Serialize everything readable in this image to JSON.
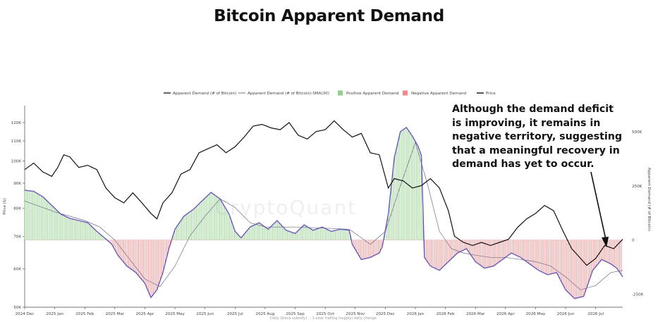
{
  "chart_data": {
    "type": "line",
    "title": "Bitcoin Apparent Demand",
    "annotation": "Although the demand deficit is improving, it remains in negative territory, suggesting that a meaningful recovery in demand has yet to occur.",
    "legend": {
      "placement": "top-center",
      "entries": [
        {
          "label": "Apparent Demand (# of Bitcoin)",
          "color": "#222222",
          "kind": "line"
        },
        {
          "label": "Apparent Demand (# of Bitcoin)-SMA(30)",
          "color": "#9a9ab0",
          "kind": "line"
        },
        {
          "label": "Positive Apparent Demand",
          "color": "#8fd18a",
          "kind": "box"
        },
        {
          "label": "Negative Apparent Demand",
          "color": "#f08a8a",
          "kind": "box"
        },
        {
          "label": "Price",
          "color": "#111111",
          "kind": "line"
        }
      ]
    },
    "ylabel": "Price ($)",
    "y2label": "Apparent Demand (# of Bitcoin)",
    "y_scale": "log",
    "ylim": [
      50000,
      130000
    ],
    "y_ticks": [
      {
        "v": 50000,
        "label": "50K"
      },
      {
        "v": 60000,
        "label": "60K"
      },
      {
        "v": 70000,
        "label": "70K"
      },
      {
        "v": 80000,
        "label": "80K"
      },
      {
        "v": 90000,
        "label": "90K"
      },
      {
        "v": 100000,
        "label": "100K"
      },
      {
        "v": 110000,
        "label": "110K"
      },
      {
        "v": 120000,
        "label": "120K"
      }
    ],
    "y2lim": [
      -310000,
      620000
    ],
    "y2_ticks": [
      {
        "v": 500000,
        "label": "500K"
      },
      {
        "v": 250000,
        "label": "250K"
      },
      {
        "v": 0,
        "label": "0"
      },
      {
        "v": -250000,
        "label": "-250K"
      }
    ],
    "x_months": [
      "2024 Dec",
      "2025 Jan",
      "2025 Feb",
      "2025 Mar",
      "2025 Apr",
      "2025 May",
      "2025 Jun",
      "2025 Jul",
      "2025 Aug",
      "2025 Sep",
      "2025 Oct",
      "2025 Nov",
      "2025 Dec",
      "2026 Jan",
      "2026 Feb",
      "2026 Mar",
      "2026 Apr",
      "2026 May",
      "2026 Jun",
      "2026 Jul"
    ],
    "x_extent_months": 19.9,
    "price_series": [
      [
        0.0,
        96000
      ],
      [
        0.3,
        99000
      ],
      [
        0.6,
        95000
      ],
      [
        0.9,
        93000
      ],
      [
        1.1,
        97000
      ],
      [
        1.3,
        103000
      ],
      [
        1.5,
        102000
      ],
      [
        1.8,
        97000
      ],
      [
        2.1,
        98000
      ],
      [
        2.4,
        96000
      ],
      [
        2.7,
        88000
      ],
      [
        3.0,
        84000
      ],
      [
        3.3,
        82000
      ],
      [
        3.6,
        86000
      ],
      [
        3.9,
        82000
      ],
      [
        4.2,
        78000
      ],
      [
        4.4,
        76000
      ],
      [
        4.6,
        82000
      ],
      [
        4.9,
        86000
      ],
      [
        5.2,
        94000
      ],
      [
        5.5,
        96000
      ],
      [
        5.8,
        104000
      ],
      [
        6.1,
        106000
      ],
      [
        6.4,
        108000
      ],
      [
        6.7,
        104000
      ],
      [
        7.0,
        107000
      ],
      [
        7.3,
        112000
      ],
      [
        7.6,
        118000
      ],
      [
        7.9,
        119000
      ],
      [
        8.2,
        117000
      ],
      [
        8.5,
        116000
      ],
      [
        8.8,
        120000
      ],
      [
        9.1,
        113000
      ],
      [
        9.4,
        111000
      ],
      [
        9.7,
        115000
      ],
      [
        10.0,
        116000
      ],
      [
        10.3,
        121000
      ],
      [
        10.6,
        116000
      ],
      [
        10.9,
        112000
      ],
      [
        11.2,
        114000
      ],
      [
        11.5,
        104000
      ],
      [
        11.8,
        103000
      ],
      [
        12.1,
        88000
      ],
      [
        12.3,
        92000
      ],
      [
        12.6,
        91000
      ],
      [
        12.9,
        88000
      ],
      [
        13.2,
        89000
      ],
      [
        13.5,
        92000
      ],
      [
        13.8,
        88000
      ],
      [
        14.1,
        79000
      ],
      [
        14.3,
        70000
      ],
      [
        14.6,
        68000
      ],
      [
        14.9,
        67000
      ],
      [
        15.2,
        68000
      ],
      [
        15.5,
        67000
      ],
      [
        15.8,
        68000
      ],
      [
        16.1,
        69000
      ],
      [
        16.4,
        73000
      ],
      [
        16.7,
        76000
      ],
      [
        17.0,
        78000
      ],
      [
        17.3,
        81000
      ],
      [
        17.6,
        79000
      ],
      [
        17.9,
        72000
      ],
      [
        18.2,
        66000
      ],
      [
        18.4,
        64000
      ],
      [
        18.7,
        61000
      ],
      [
        19.0,
        63000
      ],
      [
        19.3,
        67000
      ],
      [
        19.6,
        66000
      ],
      [
        19.9,
        69000
      ]
    ],
    "demand_series": [
      [
        0.0,
        230000
      ],
      [
        0.3,
        225000
      ],
      [
        0.6,
        200000
      ],
      [
        0.9,
        160000
      ],
      [
        1.2,
        120000
      ],
      [
        1.5,
        100000
      ],
      [
        1.8,
        90000
      ],
      [
        2.1,
        80000
      ],
      [
        2.4,
        40000
      ],
      [
        2.7,
        5000
      ],
      [
        2.9,
        -20000
      ],
      [
        3.1,
        -70000
      ],
      [
        3.4,
        -120000
      ],
      [
        3.7,
        -150000
      ],
      [
        4.0,
        -200000
      ],
      [
        4.2,
        -265000
      ],
      [
        4.4,
        -230000
      ],
      [
        4.6,
        -150000
      ],
      [
        4.8,
        -40000
      ],
      [
        5.0,
        50000
      ],
      [
        5.3,
        110000
      ],
      [
        5.6,
        140000
      ],
      [
        5.9,
        180000
      ],
      [
        6.2,
        220000
      ],
      [
        6.5,
        190000
      ],
      [
        6.8,
        120000
      ],
      [
        7.0,
        40000
      ],
      [
        7.2,
        10000
      ],
      [
        7.5,
        60000
      ],
      [
        7.8,
        80000
      ],
      [
        8.1,
        50000
      ],
      [
        8.4,
        90000
      ],
      [
        8.7,
        45000
      ],
      [
        9.0,
        30000
      ],
      [
        9.3,
        70000
      ],
      [
        9.6,
        45000
      ],
      [
        9.9,
        60000
      ],
      [
        10.2,
        40000
      ],
      [
        10.5,
        50000
      ],
      [
        10.8,
        45000
      ],
      [
        10.9,
        -20000
      ],
      [
        11.2,
        -90000
      ],
      [
        11.5,
        -80000
      ],
      [
        11.8,
        -60000
      ],
      [
        11.9,
        -30000
      ],
      [
        12.1,
        120000
      ],
      [
        12.3,
        380000
      ],
      [
        12.5,
        500000
      ],
      [
        12.7,
        520000
      ],
      [
        12.9,
        480000
      ],
      [
        13.1,
        430000
      ],
      [
        13.2,
        390000
      ],
      [
        13.3,
        -80000
      ],
      [
        13.5,
        -120000
      ],
      [
        13.8,
        -140000
      ],
      [
        14.1,
        -100000
      ],
      [
        14.4,
        -60000
      ],
      [
        14.7,
        -40000
      ],
      [
        15.0,
        -100000
      ],
      [
        15.3,
        -130000
      ],
      [
        15.6,
        -120000
      ],
      [
        15.9,
        -90000
      ],
      [
        16.2,
        -60000
      ],
      [
        16.5,
        -80000
      ],
      [
        16.8,
        -110000
      ],
      [
        17.1,
        -140000
      ],
      [
        17.4,
        -160000
      ],
      [
        17.7,
        -150000
      ],
      [
        18.0,
        -230000
      ],
      [
        18.3,
        -270000
      ],
      [
        18.6,
        -260000
      ],
      [
        18.9,
        -140000
      ],
      [
        19.2,
        -90000
      ],
      [
        19.5,
        -110000
      ],
      [
        19.7,
        -130000
      ],
      [
        19.9,
        -170000
      ]
    ],
    "sma_series": [
      [
        0.0,
        180000
      ],
      [
        1.0,
        130000
      ],
      [
        2.0,
        90000
      ],
      [
        2.5,
        60000
      ],
      [
        3.0,
        0
      ],
      [
        3.5,
        -90000
      ],
      [
        4.0,
        -180000
      ],
      [
        4.5,
        -215000
      ],
      [
        5.0,
        -120000
      ],
      [
        5.5,
        20000
      ],
      [
        6.0,
        110000
      ],
      [
        6.5,
        190000
      ],
      [
        7.0,
        150000
      ],
      [
        7.5,
        80000
      ],
      [
        8.0,
        60000
      ],
      [
        9.0,
        60000
      ],
      [
        10.0,
        55000
      ],
      [
        10.8,
        50000
      ],
      [
        11.5,
        -20000
      ],
      [
        12.0,
        40000
      ],
      [
        12.5,
        250000
      ],
      [
        13.0,
        450000
      ],
      [
        13.4,
        260000
      ],
      [
        13.8,
        40000
      ],
      [
        14.2,
        -40000
      ],
      [
        14.6,
        -60000
      ],
      [
        15.0,
        -70000
      ],
      [
        15.5,
        -80000
      ],
      [
        16.0,
        -80000
      ],
      [
        16.5,
        -90000
      ],
      [
        17.0,
        -100000
      ],
      [
        17.5,
        -120000
      ],
      [
        18.0,
        -170000
      ],
      [
        18.5,
        -230000
      ],
      [
        19.0,
        -210000
      ],
      [
        19.5,
        -150000
      ],
      [
        19.9,
        -140000
      ]
    ],
    "watermark": "CryptoQuant",
    "footer": "Daily (block subsidy) ... 1-year trailing (supply) daily change",
    "grid": false
  }
}
